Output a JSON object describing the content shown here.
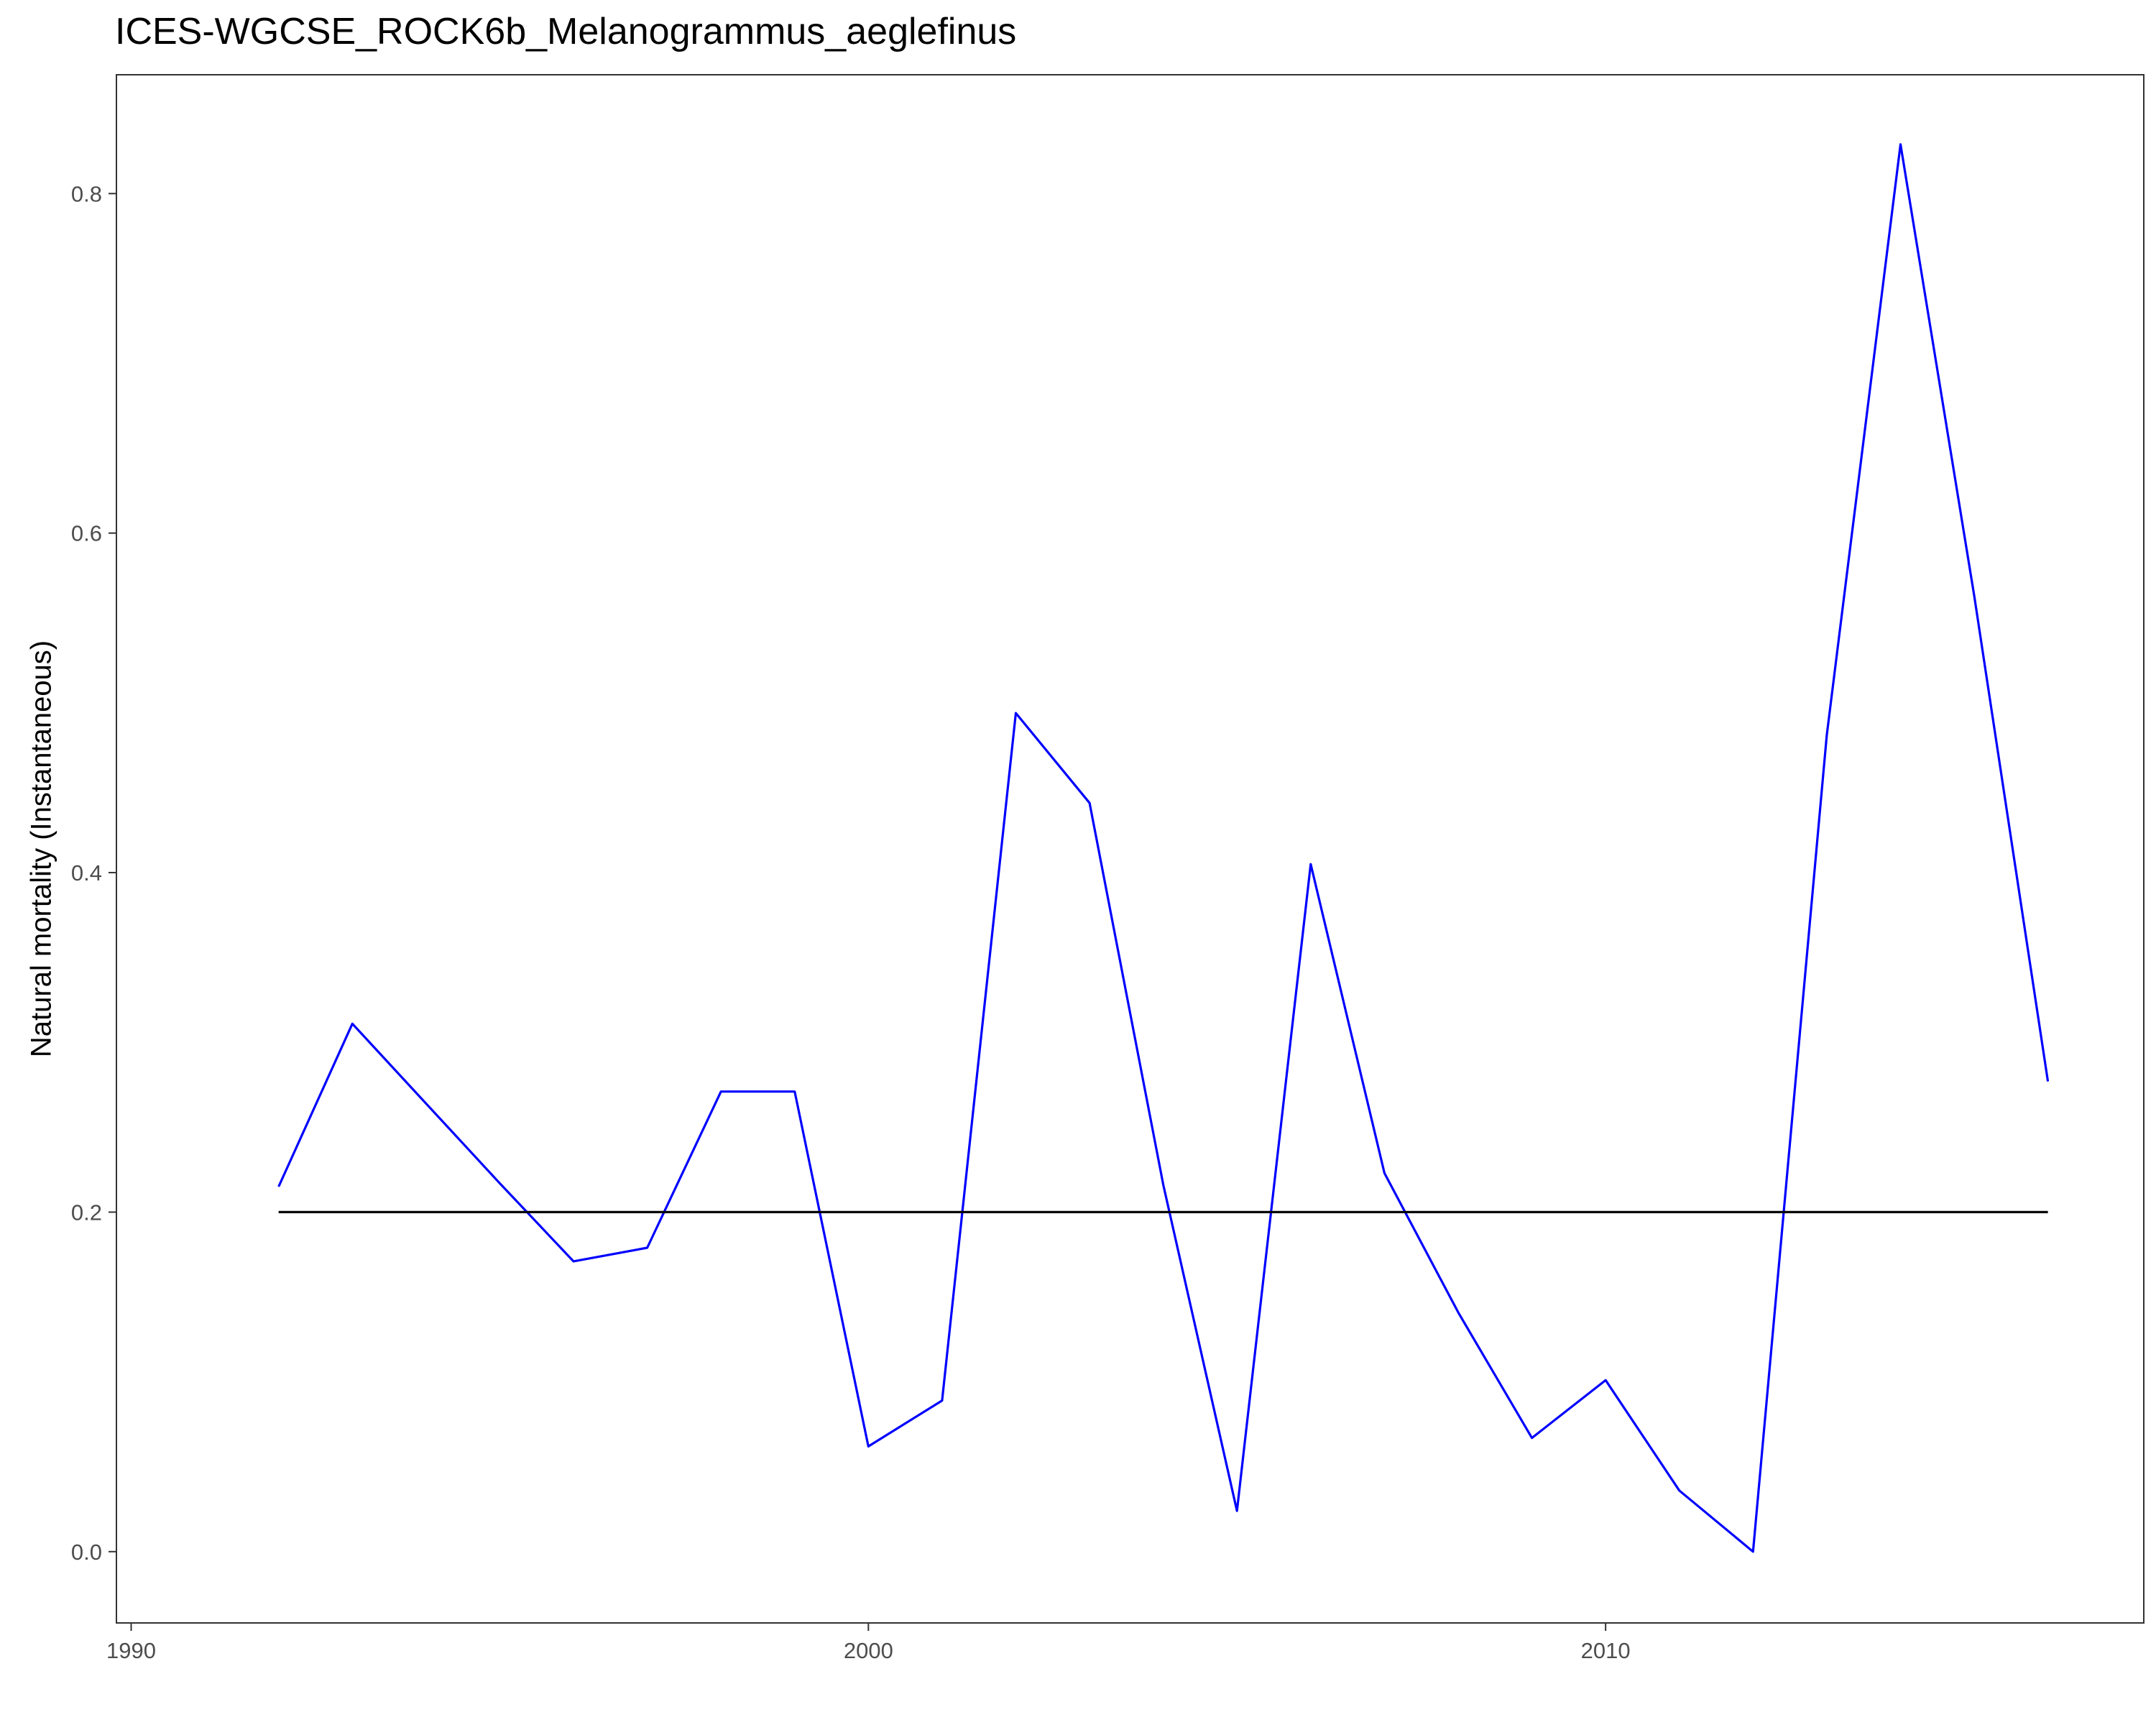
{
  "chart_data": {
    "type": "line",
    "title": "ICES-WGCSE_ROCK6b_Melanogrammus_aeglefinus",
    "xlabel": "",
    "ylabel": "Natural mortality (Instantaneous)",
    "xlim": [
      1989.8,
      2017.3
    ],
    "ylim": [
      -0.042,
      0.87
    ],
    "x_ticks": [
      1990,
      2000,
      2010
    ],
    "y_ticks": [
      0.0,
      0.2,
      0.4,
      0.6,
      0.8
    ],
    "x_tick_labels": [
      "1990",
      "2000",
      "2010"
    ],
    "y_tick_labels": [
      "0.0",
      "0.2",
      "0.4",
      "0.6",
      "0.8"
    ],
    "grid": false,
    "legend": "none",
    "series": [
      {
        "color": "#0000ff",
        "x": [
          1992,
          1993,
          1994,
          1995,
          1996,
          1997,
          1998,
          1999,
          2000,
          2001,
          2002,
          2003,
          2004,
          2005,
          2006,
          2007,
          2008,
          2009,
          2010,
          2011,
          2012,
          2013,
          2014,
          2015,
          2016
        ],
        "y": [
          0.215,
          0.311,
          0.264,
          0.217,
          0.171,
          0.179,
          0.271,
          0.271,
          0.062,
          0.089,
          0.494,
          0.441,
          0.216,
          0.024,
          0.405,
          0.223,
          0.141,
          0.067,
          0.101,
          0.036,
          0.0,
          0.481,
          0.829,
          0.563,
          0.277
        ]
      },
      {
        "color": "#000000",
        "x": [
          1992,
          2016
        ],
        "y": [
          0.2,
          0.2
        ]
      }
    ]
  }
}
